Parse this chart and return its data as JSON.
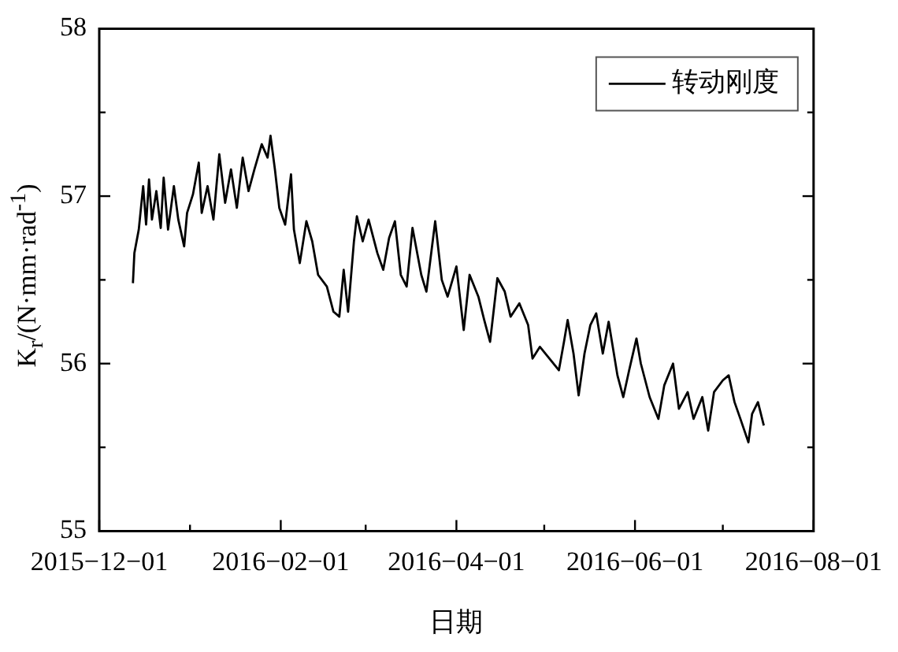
{
  "chart_data": {
    "type": "line",
    "xlabel": "日期",
    "ylabel": "K$_{r}$/(N·mm·rad$^{-1}$)",
    "legend": "top right",
    "marker": "none",
    "grid": false,
    "xlim": [
      "2015-12-01",
      "2016-08-01"
    ],
    "xticks": [
      {
        "value": "2015-12-01",
        "label": "2015−12−01"
      },
      {
        "value": "2016-01-01",
        "label": null
      },
      {
        "value": "2016-02-01",
        "label": "2016−02−01"
      },
      {
        "value": "2016-03-01",
        "label": null
      },
      {
        "value": "2016-04-01",
        "label": "2016−04−01"
      },
      {
        "value": "2016-05-01",
        "label": null
      },
      {
        "value": "2016-06-01",
        "label": "2016−06−01"
      },
      {
        "value": "2016-07-01",
        "label": null
      },
      {
        "value": "2016-08-01",
        "label": "2016−08−01"
      }
    ],
    "ylim": [
      55,
      58
    ],
    "yticks": [
      55,
      {
        "value": 55.5,
        "label": null
      },
      56,
      {
        "value": 56.5,
        "label": null
      },
      57,
      {
        "value": 57.5,
        "label": null
      },
      58
    ],
    "x": [
      "2015-12-12T12:00",
      "2015-12-13",
      "2015-12-14T12:00",
      "2015-12-16",
      "2015-12-17",
      "2015-12-18",
      "2015-12-19",
      "2015-12-20T12:00",
      "2015-12-22",
      "2015-12-23",
      "2015-12-24T12:00",
      "2015-12-26T12:00",
      "2015-12-28",
      "2015-12-30",
      "2015-12-31",
      "2016-01-02",
      "2016-01-04",
      "2016-01-05",
      "2016-01-07",
      "2016-01-09",
      "2016-01-11",
      "2016-01-13",
      "2016-01-15",
      "2016-01-17",
      "2016-01-19",
      "2016-01-21",
      "2016-01-23",
      "2016-01-25T12:00",
      "2016-01-27T12:00",
      "2016-01-28T12:00",
      "2016-01-30",
      "2016-01-31T12:00",
      "2016-02-02T12:00",
      "2016-02-04T12:00",
      "2016-02-05T12:00",
      "2016-02-07T12:00",
      "2016-02-09T18:00",
      "2016-02-11T18:00",
      "2016-02-13T18:00",
      "2016-02-16T18:00",
      "2016-02-19",
      "2016-02-21",
      "2016-02-22T12:00",
      "2016-02-24",
      "2016-02-26",
      "2016-02-27",
      "2016-02-29",
      "2016-03-02",
      "2016-03-05",
      "2016-03-07",
      "2016-03-09",
      "2016-03-11",
      "2016-03-13",
      "2016-03-15",
      "2016-03-17",
      "2016-03-20",
      "2016-03-21T18:00",
      "2016-03-24T18:00",
      "2016-03-27",
      "2016-03-29",
      "2016-04-01",
      "2016-04-03T12:00",
      "2016-04-05T12:00",
      "2016-04-08T12:00",
      "2016-04-10T12:00",
      "2016-04-12T12:00",
      "2016-04-15",
      "2016-04-17T12:00",
      "2016-04-19T12:00",
      "2016-04-22T12:00",
      "2016-04-25T12:00",
      "2016-04-27",
      "2016-04-29T12:00",
      "2016-05-06",
      "2016-05-07T18:00",
      "2016-05-09",
      "2016-05-11",
      "2016-05-12T18:00",
      "2016-05-14T18:00",
      "2016-05-16T18:00",
      "2016-05-18T18:00",
      "2016-05-21",
      "2016-05-23",
      "2016-05-26",
      "2016-05-28",
      "2016-05-30",
      "2016-06-01T12:00",
      "2016-06-03",
      "2016-06-06",
      "2016-06-09",
      "2016-06-11",
      "2016-06-14",
      "2016-06-16",
      "2016-06-19",
      "2016-06-21",
      "2016-06-24",
      "2016-06-26",
      "2016-06-28",
      "2016-07-01",
      "2016-07-03",
      "2016-07-05",
      "2016-07-07",
      "2016-07-09T18:00",
      "2016-07-11",
      "2016-07-13",
      "2016-07-15"
    ],
    "series": [
      {
        "name": "转动刚度",
        "color": "#000000",
        "values": [
          56.48,
          56.66,
          56.8,
          57.06,
          56.83,
          57.1,
          56.86,
          57.03,
          56.81,
          57.11,
          56.8,
          57.06,
          56.86,
          56.7,
          56.9,
          57.01,
          57.2,
          56.9,
          57.06,
          56.86,
          57.25,
          56.96,
          57.16,
          56.93,
          57.23,
          57.03,
          57.16,
          57.31,
          57.23,
          57.36,
          57.16,
          56.93,
          56.83,
          57.13,
          56.8,
          56.6,
          56.85,
          56.73,
          56.53,
          56.46,
          56.31,
          56.28,
          56.56,
          56.31,
          56.73,
          56.88,
          56.73,
          56.86,
          56.66,
          56.56,
          56.75,
          56.85,
          56.53,
          56.46,
          56.81,
          56.53,
          56.43,
          56.85,
          56.5,
          56.4,
          56.58,
          56.2,
          56.53,
          56.4,
          56.26,
          56.13,
          56.51,
          56.43,
          56.28,
          56.36,
          56.23,
          56.03,
          56.1,
          55.96,
          56.13,
          56.26,
          56.06,
          55.81,
          56.06,
          56.23,
          56.3,
          56.06,
          56.25,
          55.93,
          55.8,
          55.96,
          56.15,
          56.0,
          55.8,
          55.67,
          55.87,
          56.0,
          55.73,
          55.83,
          55.67,
          55.8,
          55.6,
          55.83,
          55.9,
          55.93,
          55.77,
          55.67,
          55.53,
          55.7,
          55.77,
          55.63
        ]
      }
    ]
  }
}
